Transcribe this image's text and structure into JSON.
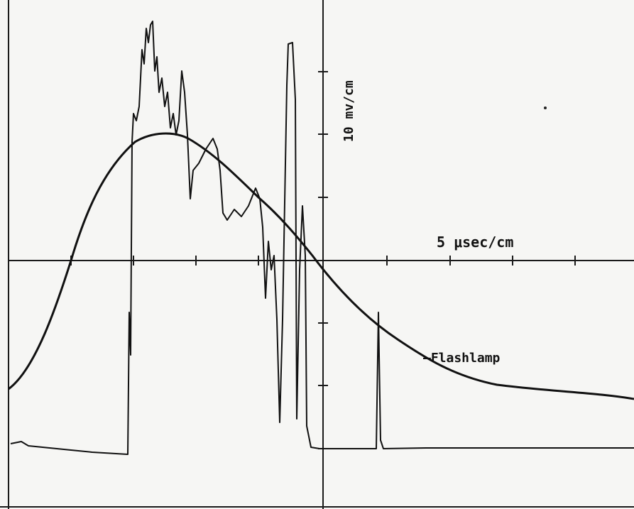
{
  "labels": {
    "vertical_scale": "10 mv/cm",
    "horizontal_scale": "5 μsec/cm",
    "trace": "—Flashlamp"
  }
}
